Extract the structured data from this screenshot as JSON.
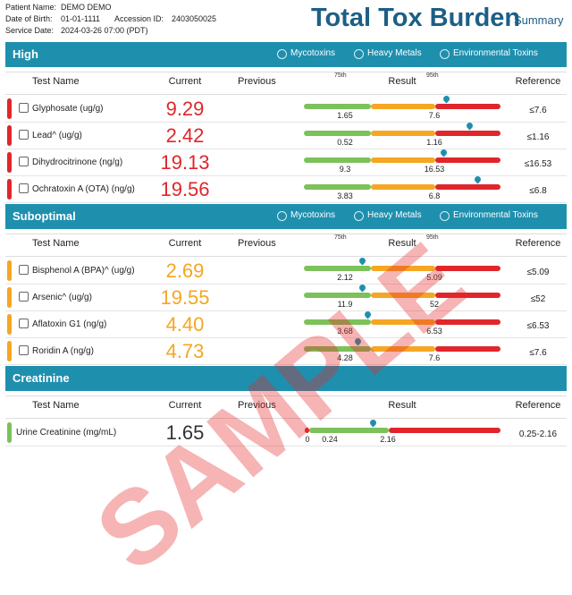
{
  "header": {
    "patient_name_label": "Patient Name:",
    "patient_name": "DEMO DEMO",
    "dob_label": "Date of Birth:",
    "dob": "01-01-1111",
    "accession_label": "Accession ID:",
    "accession": "2403050025",
    "service_date_label": "Service Date:",
    "service_date": "2024-03-26 07:00 (PDT)",
    "title": "Total Tox Burden",
    "subtitle": "- Summary"
  },
  "sections": [
    {
      "title": "High",
      "legend": [
        "Mycotoxins",
        "Heavy Metals",
        "Environmental Toxins"
      ],
      "columns": [
        "Test Name",
        "Current",
        "Previous",
        "Result",
        "Reference"
      ],
      "percentiles": [
        "75th",
        "95th"
      ],
      "rows": [
        {
          "name": "Glyphosate (ug/g)",
          "current": "9.29",
          "thresholds": [
            "1.65",
            "7.6"
          ],
          "reference": "≤7.6"
        },
        {
          "name": "Lead^ (ug/g)",
          "current": "2.42",
          "thresholds": [
            "0.52",
            "1.16"
          ],
          "reference": "≤1.16"
        },
        {
          "name": "Dihydrocitrinone (ng/g)",
          "current": "19.13",
          "thresholds": [
            "9.3",
            "16.53"
          ],
          "reference": "≤16.53"
        },
        {
          "name": "Ochratoxin A (OTA) (ng/g)",
          "current": "19.56",
          "thresholds": [
            "3.83",
            "6.8"
          ],
          "reference": "≤6.8"
        }
      ]
    },
    {
      "title": "Suboptimal",
      "legend": [
        "Mycotoxins",
        "Heavy Metals",
        "Environmental Toxins"
      ],
      "columns": [
        "Test Name",
        "Current",
        "Previous",
        "Result",
        "Reference"
      ],
      "percentiles": [
        "75th",
        "95th"
      ],
      "rows": [
        {
          "name": "Bisphenol A (BPA)^ (ug/g)",
          "current": "2.69",
          "thresholds": [
            "2.12",
            "5.09"
          ],
          "reference": "≤5.09"
        },
        {
          "name": "Arsenic^ (ug/g)",
          "current": "19.55",
          "thresholds": [
            "11.9",
            "52"
          ],
          "reference": "≤52"
        },
        {
          "name": "Aflatoxin G1 (ng/g)",
          "current": "4.40",
          "thresholds": [
            "3.68",
            "6.53"
          ],
          "reference": "≤6.53"
        },
        {
          "name": "Roridin A (ng/g)",
          "current": "4.73",
          "thresholds": [
            "4.28",
            "7.6"
          ],
          "reference": "≤7.6"
        }
      ]
    },
    {
      "title": "Creatinine",
      "columns": [
        "Test Name",
        "Current",
        "Previous",
        "Result",
        "Reference"
      ],
      "rows": [
        {
          "name": "Urine Creatinine (mg/mL)",
          "current": "1.65",
          "thresholds": [
            "0",
            "0.24",
            "2.16"
          ],
          "reference": "0.25-2.16"
        }
      ]
    }
  ],
  "watermark": "SAMPLE"
}
